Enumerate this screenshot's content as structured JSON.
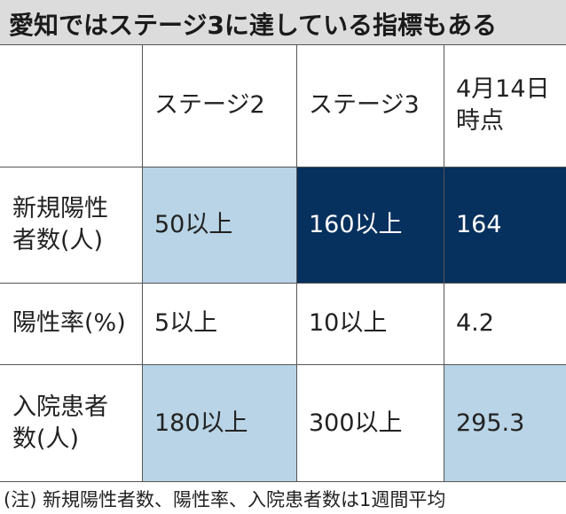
{
  "title": "愛知ではステージ3に達している指標もある",
  "headers": {
    "stage2": "ステージ2",
    "stage3": "ステージ3",
    "current_line1": "4月14日",
    "current_line2": "時点"
  },
  "rows": [
    {
      "label_line1": "新規陽性",
      "label_line2": "者数(人)",
      "stage2": "50以上",
      "stage3": "160以上",
      "current": "164"
    },
    {
      "label_line1": "陽性率(%)",
      "label_line2": "",
      "stage2": "5以上",
      "stage3": "10以上",
      "current": "4.2"
    },
    {
      "label_line1": "入院患者",
      "label_line2": "数(人)",
      "stage2": "180以上",
      "stage3": "300以上",
      "current": "295.3"
    }
  ],
  "note": "(注) 新規陽性者数、陽性率、入院患者数は1週間平均",
  "colors": {
    "title_bg": "#dcdcdc",
    "highlight_light": "#b8d4e6",
    "highlight_dark": "#06305d"
  }
}
